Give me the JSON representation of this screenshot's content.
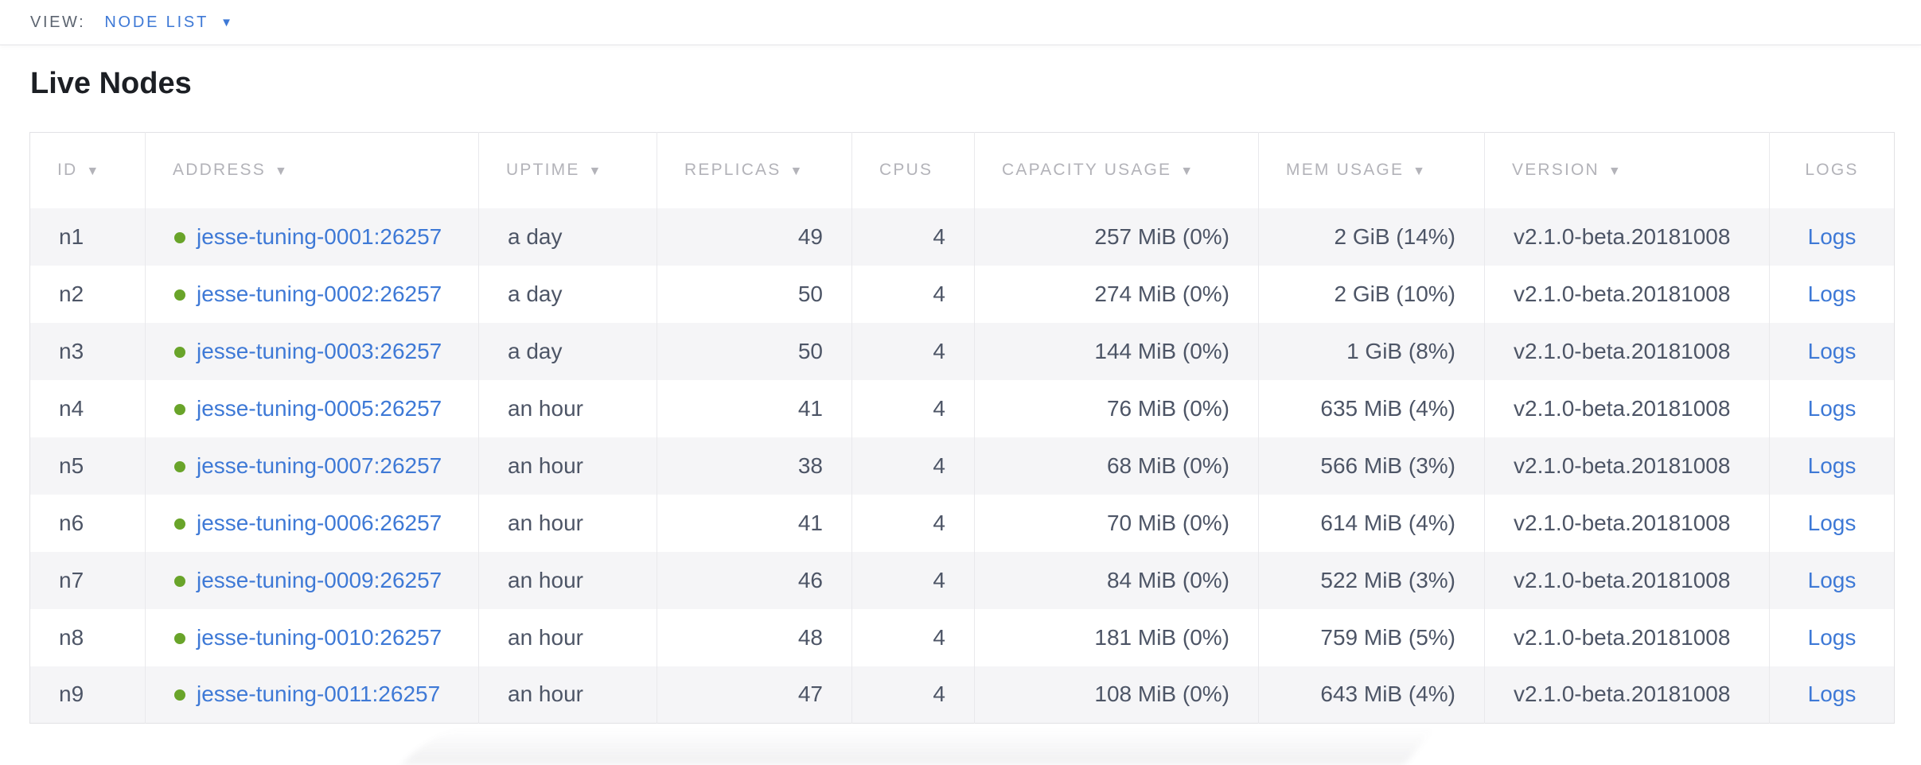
{
  "view_bar": {
    "label": "VIEW:",
    "selected": "NODE LIST"
  },
  "page_title": "Live Nodes",
  "icons": {
    "caret_down": "▼",
    "sort_desc": "▼"
  },
  "colors": {
    "link_blue": "#3e79d6",
    "header_gray": "#b3b3b9",
    "cell_text": "#4d5566",
    "live_green": "#69a42a",
    "row_stripe": "#f5f5f7"
  },
  "table": {
    "columns": [
      {
        "key": "id",
        "label": "ID",
        "sorted": true
      },
      {
        "key": "address",
        "label": "ADDRESS",
        "sorted": true
      },
      {
        "key": "uptime",
        "label": "UPTIME",
        "sorted": true
      },
      {
        "key": "replicas",
        "label": "REPLICAS",
        "sorted": true
      },
      {
        "key": "cpus",
        "label": "CPUS",
        "sorted": false
      },
      {
        "key": "capacity",
        "label": "CAPACITY USAGE",
        "sorted": true
      },
      {
        "key": "mem",
        "label": "MEM USAGE",
        "sorted": true
      },
      {
        "key": "version",
        "label": "VERSION",
        "sorted": true
      },
      {
        "key": "logs",
        "label": "LOGS",
        "sorted": false
      }
    ],
    "rows": [
      {
        "id": "n1",
        "status": "live",
        "address": "jesse-tuning-0001:26257",
        "uptime": "a day",
        "replicas": "49",
        "cpus": "4",
        "capacity": "257 MiB (0%)",
        "mem": "2 GiB (14%)",
        "version": "v2.1.0-beta.20181008",
        "logs": "Logs"
      },
      {
        "id": "n2",
        "status": "live",
        "address": "jesse-tuning-0002:26257",
        "uptime": "a day",
        "replicas": "50",
        "cpus": "4",
        "capacity": "274 MiB (0%)",
        "mem": "2 GiB (10%)",
        "version": "v2.1.0-beta.20181008",
        "logs": "Logs"
      },
      {
        "id": "n3",
        "status": "live",
        "address": "jesse-tuning-0003:26257",
        "uptime": "a day",
        "replicas": "50",
        "cpus": "4",
        "capacity": "144 MiB (0%)",
        "mem": "1 GiB (8%)",
        "version": "v2.1.0-beta.20181008",
        "logs": "Logs"
      },
      {
        "id": "n4",
        "status": "live",
        "address": "jesse-tuning-0005:26257",
        "uptime": "an hour",
        "replicas": "41",
        "cpus": "4",
        "capacity": "76 MiB (0%)",
        "mem": "635 MiB (4%)",
        "version": "v2.1.0-beta.20181008",
        "logs": "Logs"
      },
      {
        "id": "n5",
        "status": "live",
        "address": "jesse-tuning-0007:26257",
        "uptime": "an hour",
        "replicas": "38",
        "cpus": "4",
        "capacity": "68 MiB (0%)",
        "mem": "566 MiB (3%)",
        "version": "v2.1.0-beta.20181008",
        "logs": "Logs"
      },
      {
        "id": "n6",
        "status": "live",
        "address": "jesse-tuning-0006:26257",
        "uptime": "an hour",
        "replicas": "41",
        "cpus": "4",
        "capacity": "70 MiB (0%)",
        "mem": "614 MiB (4%)",
        "version": "v2.1.0-beta.20181008",
        "logs": "Logs"
      },
      {
        "id": "n7",
        "status": "live",
        "address": "jesse-tuning-0009:26257",
        "uptime": "an hour",
        "replicas": "46",
        "cpus": "4",
        "capacity": "84 MiB (0%)",
        "mem": "522 MiB (3%)",
        "version": "v2.1.0-beta.20181008",
        "logs": "Logs"
      },
      {
        "id": "n8",
        "status": "live",
        "address": "jesse-tuning-0010:26257",
        "uptime": "an hour",
        "replicas": "48",
        "cpus": "4",
        "capacity": "181 MiB (0%)",
        "mem": "759 MiB (5%)",
        "version": "v2.1.0-beta.20181008",
        "logs": "Logs"
      },
      {
        "id": "n9",
        "status": "live",
        "address": "jesse-tuning-0011:26257",
        "uptime": "an hour",
        "replicas": "47",
        "cpus": "4",
        "capacity": "108 MiB (0%)",
        "mem": "643 MiB (4%)",
        "version": "v2.1.0-beta.20181008",
        "logs": "Logs"
      }
    ]
  }
}
